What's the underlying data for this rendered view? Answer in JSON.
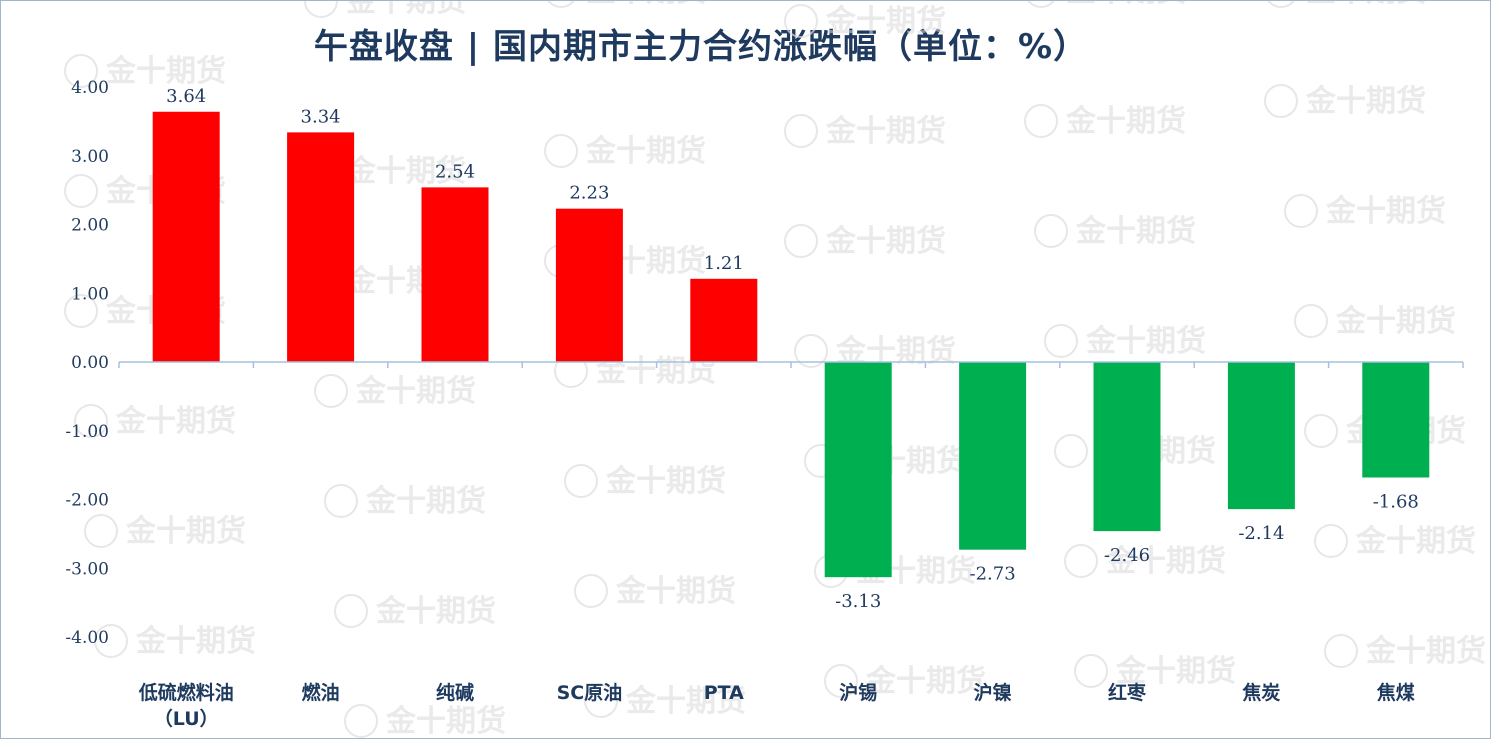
{
  "chart_data": {
    "type": "bar",
    "title": "午盘收盘 | 国内期市主力合约涨跌幅（单位：%）",
    "categories": [
      "低硫燃料油（LU）",
      "燃油",
      "纯碱",
      "SC原油",
      "PTA",
      "沪锡",
      "沪镍",
      "红枣",
      "焦炭",
      "焦煤"
    ],
    "values": [
      3.64,
      3.34,
      2.54,
      2.23,
      1.21,
      -3.13,
      -2.73,
      -2.46,
      -2.14,
      -1.68
    ],
    "value_labels": [
      "3.64",
      "3.34",
      "2.54",
      "2.23",
      "1.21",
      "-3.13",
      "-2.73",
      "-2.46",
      "-2.14",
      "-1.68"
    ],
    "yticks": [
      "4.00",
      "3.00",
      "2.00",
      "1.00",
      "0.00",
      "-1.00",
      "-2.00",
      "-3.00",
      "-4.00"
    ],
    "ylim": [
      -4,
      4
    ],
    "grid": false,
    "colors": {
      "positive": "#ff0000",
      "negative": "#00b050",
      "axis": "#a6c0de",
      "text": "#1f3a5f"
    },
    "watermark": "金十期货"
  }
}
